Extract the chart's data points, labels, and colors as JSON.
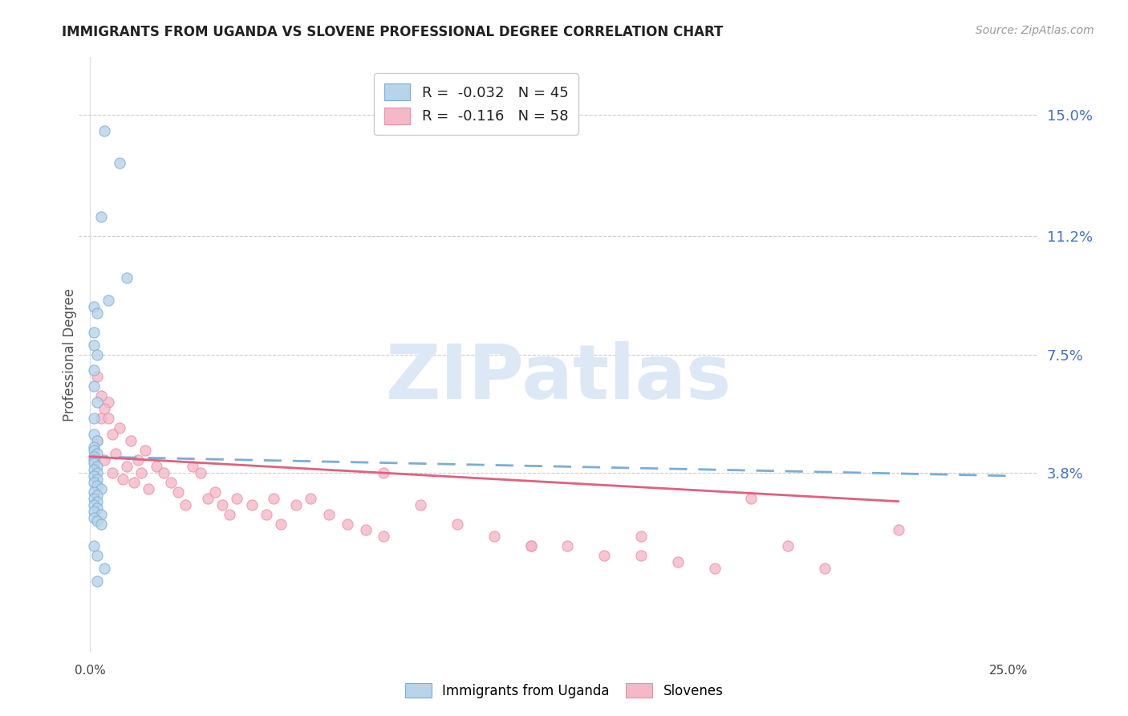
{
  "title": "IMMIGRANTS FROM UGANDA VS SLOVENE PROFESSIONAL DEGREE CORRELATION CHART",
  "source": "Source: ZipAtlas.com",
  "ylabel": "Professional Degree",
  "ytick_labels": [
    "15.0%",
    "11.2%",
    "7.5%",
    "3.8%"
  ],
  "ytick_values": [
    0.15,
    0.112,
    0.075,
    0.038
  ],
  "xmin": 0.0,
  "xmax": 0.25,
  "ymin": -0.018,
  "ymax": 0.168,
  "watermark_text": "ZIPatlas",
  "legend_line1": "R =  -0.032   N = 45",
  "legend_line2": "R =  -0.116   N = 58",
  "color_blue_fill": "#b8d4ea",
  "color_blue_edge": "#7aaed4",
  "color_pink_fill": "#f5b8c8",
  "color_pink_edge": "#e890a8",
  "trendline_blue_color": "#7aaed4",
  "trendline_pink_color": "#e06080",
  "title_color": "#222222",
  "source_color": "#999999",
  "ylabel_color": "#555555",
  "tick_label_color": "#4472c4",
  "grid_color": "#cccccc",
  "watermark_color": "#dce8f5",
  "uganda_x": [
    0.004,
    0.008,
    0.003,
    0.01,
    0.005,
    0.001,
    0.002,
    0.001,
    0.001,
    0.002,
    0.001,
    0.001,
    0.002,
    0.001,
    0.001,
    0.002,
    0.001,
    0.001,
    0.002,
    0.001,
    0.001,
    0.001,
    0.002,
    0.001,
    0.002,
    0.001,
    0.002,
    0.001,
    0.002,
    0.003,
    0.001,
    0.002,
    0.001,
    0.002,
    0.001,
    0.002,
    0.001,
    0.003,
    0.001,
    0.002,
    0.003,
    0.001,
    0.002,
    0.004,
    0.002
  ],
  "uganda_y": [
    0.145,
    0.135,
    0.118,
    0.099,
    0.092,
    0.09,
    0.088,
    0.082,
    0.078,
    0.075,
    0.07,
    0.065,
    0.06,
    0.055,
    0.05,
    0.048,
    0.046,
    0.045,
    0.044,
    0.043,
    0.042,
    0.041,
    0.04,
    0.039,
    0.038,
    0.037,
    0.036,
    0.035,
    0.034,
    0.033,
    0.032,
    0.031,
    0.03,
    0.029,
    0.028,
    0.027,
    0.026,
    0.025,
    0.024,
    0.023,
    0.022,
    0.015,
    0.012,
    0.008,
    0.004
  ],
  "slovene_x": [
    0.002,
    0.003,
    0.004,
    0.005,
    0.006,
    0.007,
    0.008,
    0.009,
    0.01,
    0.011,
    0.012,
    0.013,
    0.014,
    0.015,
    0.016,
    0.018,
    0.02,
    0.022,
    0.024,
    0.026,
    0.028,
    0.03,
    0.032,
    0.034,
    0.036,
    0.038,
    0.04,
    0.044,
    0.048,
    0.052,
    0.056,
    0.06,
    0.065,
    0.07,
    0.075,
    0.08,
    0.09,
    0.1,
    0.11,
    0.12,
    0.13,
    0.14,
    0.15,
    0.16,
    0.17,
    0.18,
    0.19,
    0.002,
    0.003,
    0.004,
    0.005,
    0.006,
    0.05,
    0.08,
    0.12,
    0.15,
    0.2,
    0.22
  ],
  "slovene_y": [
    0.048,
    0.055,
    0.042,
    0.06,
    0.038,
    0.044,
    0.052,
    0.036,
    0.04,
    0.048,
    0.035,
    0.042,
    0.038,
    0.045,
    0.033,
    0.04,
    0.038,
    0.035,
    0.032,
    0.028,
    0.04,
    0.038,
    0.03,
    0.032,
    0.028,
    0.025,
    0.03,
    0.028,
    0.025,
    0.022,
    0.028,
    0.03,
    0.025,
    0.022,
    0.02,
    0.018,
    0.028,
    0.022,
    0.018,
    0.015,
    0.015,
    0.012,
    0.012,
    0.01,
    0.008,
    0.03,
    0.015,
    0.068,
    0.062,
    0.058,
    0.055,
    0.05,
    0.03,
    0.038,
    0.015,
    0.018,
    0.008,
    0.02
  ],
  "ug_trend_x": [
    0.0,
    0.1
  ],
  "ug_trend_y": [
    0.043,
    0.038
  ],
  "sl_trend_x": [
    0.0,
    0.22
  ],
  "sl_trend_y": [
    0.042,
    0.03
  ]
}
